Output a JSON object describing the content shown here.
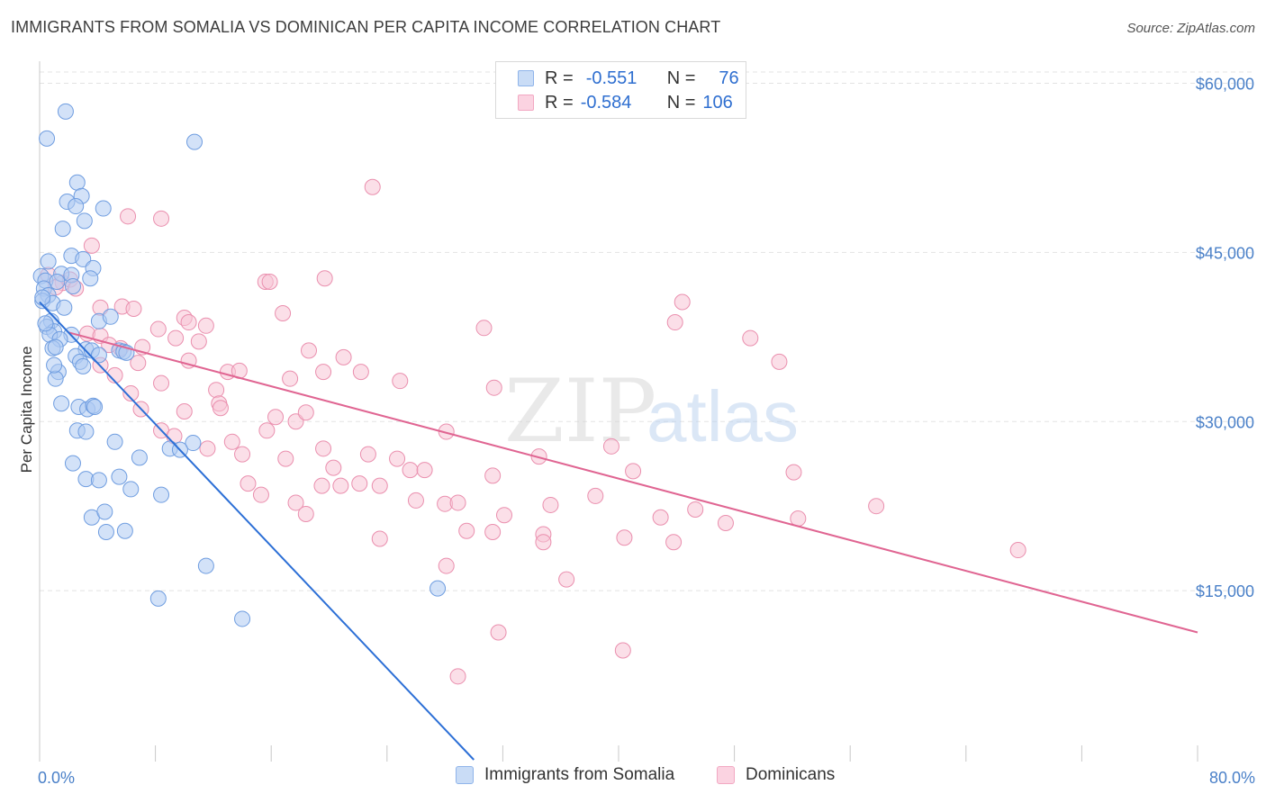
{
  "header": {
    "title": "IMMIGRANTS FROM SOMALIA VS DOMINICAN PER CAPITA INCOME CORRELATION CHART",
    "source": "Source: ZipAtlas.com"
  },
  "watermark": {
    "part1": "ZIP",
    "part2": "atlas"
  },
  "legend": {
    "rows": [
      {
        "r_label": "R =",
        "r_value": "-0.551",
        "n_label": "N =",
        "n_value": "76",
        "color": "#8fb4ea"
      },
      {
        "r_label": "R =",
        "r_value": "-0.584",
        "n_label": "N =",
        "n_value": "106",
        "color": "#f2a8c2"
      }
    ]
  },
  "colors": {
    "somalia_fill": "#aecbf2",
    "somalia_stroke": "#6f9de0",
    "somalia_line": "#2c6fd6",
    "dominican_fill": "#f8c5d6",
    "dominican_stroke": "#ea8fae",
    "dominican_line": "#e06592",
    "grid": "#e3e3e3",
    "axis_text": "#4a80c8"
  },
  "chart_data": {
    "type": "scatter",
    "title": "IMMIGRANTS FROM SOMALIA VS DOMINICAN PER CAPITA INCOME CORRELATION CHART",
    "xlabel": "",
    "ylabel": "Per Capita Income",
    "xlim": [
      0,
      80
    ],
    "ylim": [
      0,
      61000
    ],
    "x_tick_labels": [
      "0.0%",
      "80.0%"
    ],
    "y_ticks": [
      15000,
      30000,
      45000,
      60000
    ],
    "y_tick_labels": [
      "$15,000",
      "$30,000",
      "$45,000",
      "$60,000"
    ],
    "grid": true,
    "legend_position": "bottom",
    "series": [
      {
        "name": "Immigrants from Somalia",
        "stats": {
          "R": -0.551,
          "N": 76
        },
        "trend": [
          [
            0,
            40600
          ],
          [
            30,
            0
          ]
        ],
        "points": [
          [
            1.8,
            57500
          ],
          [
            0.5,
            55100
          ],
          [
            10.7,
            54800
          ],
          [
            2.6,
            51200
          ],
          [
            2.9,
            50000
          ],
          [
            1.9,
            49500
          ],
          [
            2.5,
            49100
          ],
          [
            4.4,
            48900
          ],
          [
            3.1,
            47800
          ],
          [
            1.6,
            47100
          ],
          [
            2.2,
            44700
          ],
          [
            0.6,
            44200
          ],
          [
            3.0,
            44400
          ],
          [
            3.7,
            43600
          ],
          [
            0.1,
            42900
          ],
          [
            1.5,
            43100
          ],
          [
            2.2,
            43000
          ],
          [
            0.4,
            42500
          ],
          [
            3.5,
            42700
          ],
          [
            1.2,
            42400
          ],
          [
            0.3,
            41800
          ],
          [
            2.3,
            42000
          ],
          [
            0.6,
            41200
          ],
          [
            0.2,
            40700
          ],
          [
            0.9,
            40500
          ],
          [
            1.7,
            40100
          ],
          [
            0.8,
            38900
          ],
          [
            4.1,
            38900
          ],
          [
            0.5,
            38400
          ],
          [
            1.0,
            38000
          ],
          [
            0.7,
            37700
          ],
          [
            2.2,
            37700
          ],
          [
            4.9,
            39300
          ],
          [
            1.4,
            37300
          ],
          [
            0.9,
            36500
          ],
          [
            1.1,
            36600
          ],
          [
            3.2,
            36400
          ],
          [
            3.6,
            36300
          ],
          [
            5.5,
            36300
          ],
          [
            5.8,
            36200
          ],
          [
            2.5,
            35800
          ],
          [
            4.1,
            35900
          ],
          [
            6.0,
            36100
          ],
          [
            2.8,
            35300
          ],
          [
            3.0,
            34900
          ],
          [
            1.3,
            34400
          ],
          [
            1.1,
            33800
          ],
          [
            1.5,
            31600
          ],
          [
            2.7,
            31300
          ],
          [
            3.3,
            31100
          ],
          [
            3.7,
            31400
          ],
          [
            3.8,
            31300
          ],
          [
            2.6,
            29200
          ],
          [
            3.2,
            29100
          ],
          [
            5.2,
            28200
          ],
          [
            6.9,
            26800
          ],
          [
            10.6,
            28100
          ],
          [
            9.0,
            27600
          ],
          [
            2.3,
            26300
          ],
          [
            3.2,
            24900
          ],
          [
            4.1,
            24800
          ],
          [
            5.5,
            25100
          ],
          [
            6.3,
            24000
          ],
          [
            8.4,
            23500
          ],
          [
            3.6,
            21500
          ],
          [
            4.5,
            22000
          ],
          [
            4.6,
            20200
          ],
          [
            5.9,
            20300
          ],
          [
            11.5,
            17200
          ],
          [
            8.2,
            14300
          ],
          [
            14.0,
            12500
          ],
          [
            27.5,
            15200
          ],
          [
            0.2,
            41000
          ],
          [
            1.0,
            35000
          ],
          [
            9.7,
            27500
          ],
          [
            0.4,
            38700
          ]
        ]
      },
      {
        "name": "Dominicans",
        "stats": {
          "R": -0.584,
          "N": 106
        },
        "trend": [
          [
            2,
            37900
          ],
          [
            80,
            11300
          ]
        ],
        "points": [
          [
            23.0,
            50800
          ],
          [
            6.1,
            48200
          ],
          [
            8.4,
            48000
          ],
          [
            3.6,
            45600
          ],
          [
            0.6,
            43000
          ],
          [
            1.6,
            42300
          ],
          [
            2.1,
            42600
          ],
          [
            15.6,
            42400
          ],
          [
            15.9,
            42400
          ],
          [
            19.7,
            42700
          ],
          [
            1.1,
            41900
          ],
          [
            2.5,
            41800
          ],
          [
            44.4,
            40600
          ],
          [
            4.2,
            40100
          ],
          [
            5.7,
            40200
          ],
          [
            6.5,
            40000
          ],
          [
            16.8,
            39600
          ],
          [
            10.0,
            39200
          ],
          [
            10.3,
            38800
          ],
          [
            11.5,
            38500
          ],
          [
            8.2,
            38200
          ],
          [
            30.7,
            38300
          ],
          [
            43.9,
            38800
          ],
          [
            49.1,
            37400
          ],
          [
            3.3,
            37800
          ],
          [
            4.2,
            37600
          ],
          [
            9.4,
            37400
          ],
          [
            11.0,
            37100
          ],
          [
            5.6,
            36500
          ],
          [
            7.1,
            36600
          ],
          [
            18.6,
            36300
          ],
          [
            6.8,
            35200
          ],
          [
            10.3,
            35400
          ],
          [
            21.0,
            35700
          ],
          [
            51.1,
            35300
          ],
          [
            4.2,
            35000
          ],
          [
            5.2,
            34100
          ],
          [
            13.0,
            34400
          ],
          [
            13.8,
            34500
          ],
          [
            19.6,
            34400
          ],
          [
            22.2,
            34400
          ],
          [
            17.3,
            33800
          ],
          [
            24.9,
            33600
          ],
          [
            8.4,
            33400
          ],
          [
            6.3,
            32500
          ],
          [
            12.2,
            32800
          ],
          [
            31.4,
            33000
          ],
          [
            10.0,
            30900
          ],
          [
            12.4,
            31600
          ],
          [
            7.0,
            31100
          ],
          [
            16.3,
            30400
          ],
          [
            17.7,
            30000
          ],
          [
            18.4,
            30800
          ],
          [
            12.5,
            31200
          ],
          [
            15.7,
            29200
          ],
          [
            8.4,
            29200
          ],
          [
            13.3,
            28200
          ],
          [
            11.6,
            27600
          ],
          [
            19.6,
            27600
          ],
          [
            28.1,
            29100
          ],
          [
            39.5,
            27800
          ],
          [
            22.7,
            27100
          ],
          [
            24.7,
            26700
          ],
          [
            17.0,
            26700
          ],
          [
            20.3,
            25900
          ],
          [
            14.0,
            27100
          ],
          [
            25.6,
            25700
          ],
          [
            26.6,
            25700
          ],
          [
            31.3,
            25200
          ],
          [
            34.5,
            26900
          ],
          [
            41.0,
            25600
          ],
          [
            52.1,
            25500
          ],
          [
            19.5,
            24300
          ],
          [
            22.1,
            24500
          ],
          [
            23.5,
            24300
          ],
          [
            15.3,
            23500
          ],
          [
            26.0,
            23000
          ],
          [
            28.0,
            22700
          ],
          [
            28.9,
            22800
          ],
          [
            17.7,
            22800
          ],
          [
            35.3,
            22600
          ],
          [
            38.4,
            23400
          ],
          [
            45.3,
            22200
          ],
          [
            57.8,
            22500
          ],
          [
            32.1,
            21700
          ],
          [
            18.4,
            21800
          ],
          [
            42.9,
            21500
          ],
          [
            47.4,
            21000
          ],
          [
            52.4,
            21400
          ],
          [
            29.5,
            20300
          ],
          [
            31.3,
            20200
          ],
          [
            34.8,
            20000
          ],
          [
            40.4,
            19700
          ],
          [
            43.8,
            19300
          ],
          [
            23.5,
            19600
          ],
          [
            34.8,
            19300
          ],
          [
            67.6,
            18600
          ],
          [
            28.1,
            17200
          ],
          [
            36.4,
            16000
          ],
          [
            31.7,
            11300
          ],
          [
            40.3,
            9700
          ],
          [
            28.9,
            7400
          ],
          [
            4.8,
            36800
          ],
          [
            9.3,
            28700
          ],
          [
            14.4,
            24500
          ],
          [
            20.8,
            24300
          ]
        ]
      }
    ]
  },
  "bottom_legend": {
    "somalia": "Immigrants from Somalia",
    "dominicans": "Dominicans"
  }
}
